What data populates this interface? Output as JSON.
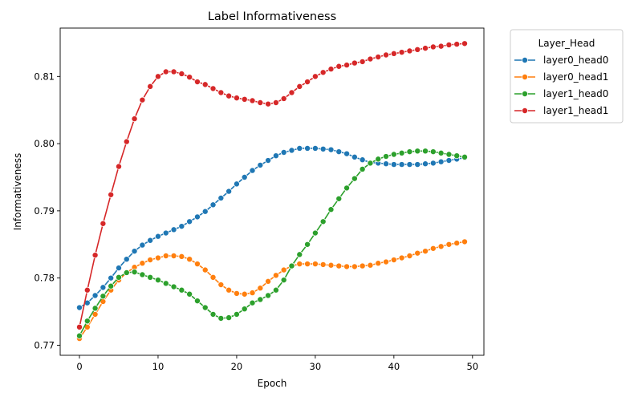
{
  "chart_data": {
    "type": "line",
    "title": "Label Informativeness",
    "xlabel": "Epoch",
    "ylabel": "Informativeness",
    "xlim": [
      -2.45,
      51.45
    ],
    "ylim": [
      0.7685,
      0.8172
    ],
    "xticks": [
      0,
      10,
      20,
      30,
      40,
      50
    ],
    "xtick_labels": [
      "0",
      "10",
      "20",
      "30",
      "40",
      "50"
    ],
    "yticks": [
      0.77,
      0.78,
      0.79,
      0.8,
      0.81
    ],
    "ytick_labels": [
      "0.77",
      "0.78",
      "0.79",
      "0.80",
      "0.81"
    ],
    "grid": false,
    "legend": {
      "title": "Layer_Head",
      "placement": "outside-top-right"
    },
    "marker": "circle",
    "x": [
      0,
      1,
      2,
      3,
      4,
      5,
      6,
      7,
      8,
      9,
      10,
      11,
      12,
      13,
      14,
      15,
      16,
      17,
      18,
      19,
      20,
      21,
      22,
      23,
      24,
      25,
      26,
      27,
      28,
      29,
      30,
      31,
      32,
      33,
      34,
      35,
      36,
      37,
      38,
      39,
      40,
      41,
      42,
      43,
      44,
      45,
      46,
      47,
      48,
      49
    ],
    "series": [
      {
        "name": "layer0_head0",
        "color": "#1f77b4",
        "values": [
          0.7756,
          0.7763,
          0.7774,
          0.7786,
          0.78,
          0.7815,
          0.7828,
          0.784,
          0.7849,
          0.7856,
          0.7862,
          0.7867,
          0.7872,
          0.7877,
          0.7884,
          0.7891,
          0.7899,
          0.7909,
          0.7919,
          0.7929,
          0.794,
          0.795,
          0.796,
          0.7968,
          0.7975,
          0.7982,
          0.7987,
          0.799,
          0.7993,
          0.7993,
          0.7993,
          0.7992,
          0.7991,
          0.7988,
          0.7985,
          0.798,
          0.7976,
          0.7972,
          0.7971,
          0.797,
          0.7969,
          0.7969,
          0.7969,
          0.7969,
          0.797,
          0.7971,
          0.7973,
          0.7975,
          0.7977,
          0.7979
        ]
      },
      {
        "name": "layer0_head1",
        "color": "#ff7f0e",
        "values": [
          0.771,
          0.7727,
          0.7746,
          0.7765,
          0.7782,
          0.7797,
          0.7808,
          0.7816,
          0.7822,
          0.7827,
          0.783,
          0.7833,
          0.7833,
          0.7832,
          0.7828,
          0.7821,
          0.7812,
          0.7801,
          0.779,
          0.7782,
          0.7777,
          0.7776,
          0.7778,
          0.7785,
          0.7795,
          0.7804,
          0.7812,
          0.7818,
          0.7821,
          0.7821,
          0.7821,
          0.782,
          0.7819,
          0.7818,
          0.7817,
          0.7817,
          0.7818,
          0.7819,
          0.7822,
          0.7824,
          0.7827,
          0.783,
          0.7833,
          0.7837,
          0.784,
          0.7844,
          0.7847,
          0.785,
          0.7852,
          0.7854
        ]
      },
      {
        "name": "layer1_head0",
        "color": "#2ca02c",
        "values": [
          0.7714,
          0.7736,
          0.7755,
          0.7773,
          0.7788,
          0.7801,
          0.7808,
          0.7809,
          0.7805,
          0.7801,
          0.7797,
          0.7792,
          0.7787,
          0.7782,
          0.7776,
          0.7766,
          0.7756,
          0.7746,
          0.774,
          0.7741,
          0.7746,
          0.7754,
          0.7763,
          0.7768,
          0.7774,
          0.7782,
          0.7797,
          0.7818,
          0.7835,
          0.785,
          0.7867,
          0.7884,
          0.7902,
          0.7918,
          0.7934,
          0.7948,
          0.7962,
          0.7971,
          0.7977,
          0.7981,
          0.7984,
          0.7986,
          0.7988,
          0.7989,
          0.7989,
          0.7988,
          0.7986,
          0.7984,
          0.7982,
          0.798
        ]
      },
      {
        "name": "layer1_head1",
        "color": "#d62728",
        "values": [
          0.7727,
          0.7782,
          0.7834,
          0.7881,
          0.7924,
          0.7966,
          0.8003,
          0.8037,
          0.8065,
          0.8085,
          0.81,
          0.8107,
          0.8107,
          0.8104,
          0.8099,
          0.8092,
          0.8088,
          0.8082,
          0.8076,
          0.8071,
          0.8068,
          0.8066,
          0.8064,
          0.8061,
          0.8059,
          0.8061,
          0.8067,
          0.8076,
          0.8085,
          0.8092,
          0.81,
          0.8106,
          0.8111,
          0.8115,
          0.8117,
          0.812,
          0.8122,
          0.8126,
          0.8129,
          0.8132,
          0.8134,
          0.8136,
          0.8138,
          0.814,
          0.8142,
          0.8144,
          0.8145,
          0.8147,
          0.8148,
          0.8149
        ]
      }
    ]
  }
}
